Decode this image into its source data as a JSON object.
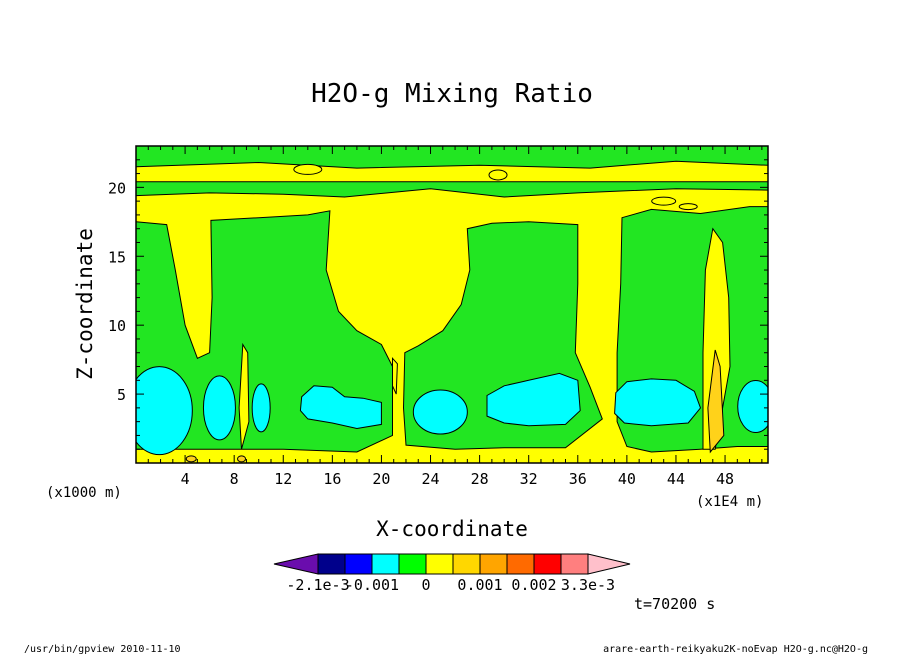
{
  "chart_data": {
    "type": "heatmap",
    "title": "H2O-g Mixing Ratio",
    "xlabel": "X-coordinate",
    "ylabel": "Z-coordinate",
    "x_unit_note": "(x1E4 m)",
    "y_unit_note": "(x1000 m)",
    "xlim": [
      0,
      51.5
    ],
    "ylim": [
      0,
      23
    ],
    "x_ticks": [
      4,
      8,
      12,
      16,
      20,
      24,
      28,
      32,
      36,
      40,
      44,
      48
    ],
    "y_ticks": [
      5,
      10,
      15,
      20
    ],
    "colorbar": {
      "labels": [
        "-2.1e-3",
        "-0.001",
        "0",
        "0.001",
        "0.002",
        "3.3e-3"
      ],
      "colors": [
        "#6a0dad",
        "#00008b",
        "#0000ff",
        "#00ffff",
        "#00ff00",
        "#ffff00",
        "#ffd700",
        "#ffa500",
        "#ff6a00",
        "#ff0000",
        "#ff7f7f",
        "#ffc0cb"
      ]
    },
    "colors": {
      "background_level": "#ffff00",
      "level_green": "#22e622",
      "level_cyan": "#00ffff",
      "level_gold": "#ffd21a",
      "level_orange": "#ffa500"
    },
    "time_label": "t=70200 s"
  },
  "footer": {
    "left": "/usr/bin/gpview  2010-11-10",
    "right": "arare-earth-reikyaku2K-noEvap_H2O-g.nc@H2O-g"
  }
}
